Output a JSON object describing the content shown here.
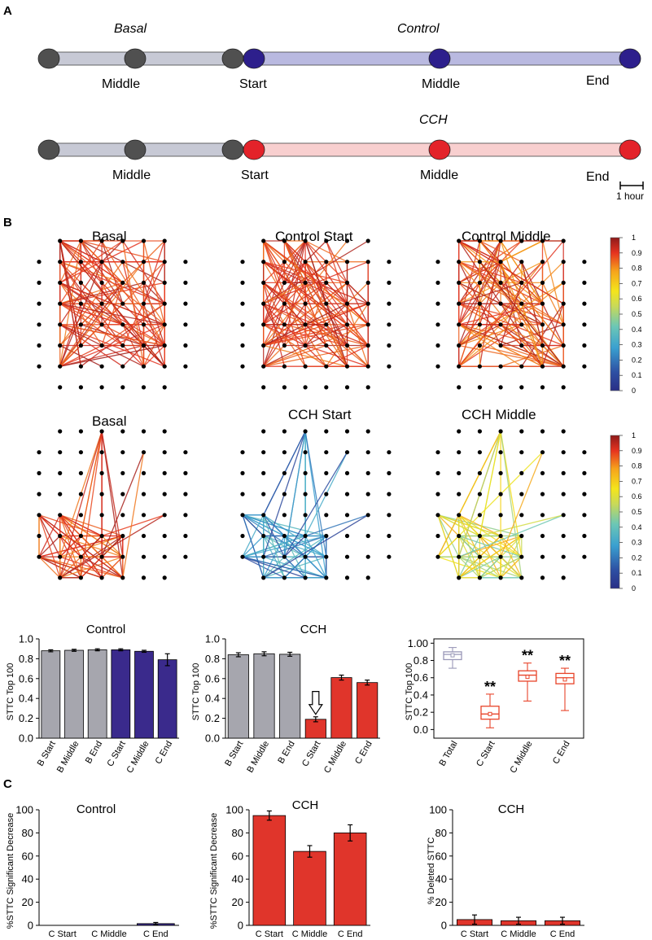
{
  "panels": {
    "a": "A",
    "b": "B",
    "c": "C"
  },
  "colors": {
    "basal_node": "#505050",
    "basal_bar": "#c7c9d5",
    "control_node": "#2d1f8c",
    "control_bar": "#b9b9e0",
    "cch_node": "#e3232a",
    "cch_bar": "#f8cfcf",
    "gray_bar": "#a6a6ae",
    "control_chart": "#3a2a8c",
    "cch_chart": "#e0352b",
    "box_basal": "#9a98b8",
    "box_cch": "#e8442a"
  },
  "timeline": {
    "scale_label": "1 hour",
    "rows": [
      {
        "cond_left": "Basal",
        "cond_right": "Control",
        "labels": [
          "Middle",
          "Start",
          "Middle",
          "End"
        ],
        "scheme": "control"
      },
      {
        "cond_left": "",
        "cond_right": "CCH",
        "labels": [
          "Middle",
          "Start",
          "Middle",
          "End"
        ],
        "scheme": "cch"
      }
    ]
  },
  "networks": {
    "row1_titles": [
      "Basal",
      "Control Start",
      "Control Middle"
    ],
    "row2_titles": [
      "Basal",
      "CCH Start",
      "CCH Middle"
    ],
    "colorbar_ticks": [
      "1",
      "0.9",
      "0.8",
      "0.7",
      "0.6",
      "0.5",
      "0.4",
      "0.3",
      "0.2",
      "0.1",
      "0"
    ]
  },
  "chart_data": [
    {
      "type": "bar",
      "title": "Control",
      "ylabel": "STTC Top 100",
      "ylim": [
        0,
        1.0
      ],
      "yticks": [
        "0.0",
        "0.2",
        "0.4",
        "0.6",
        "0.8",
        "1.0"
      ],
      "categories": [
        "B Start",
        "B Middle",
        "B End",
        "C Start",
        "C Middle",
        "C End"
      ],
      "values": [
        0.88,
        0.885,
        0.89,
        0.89,
        0.875,
        0.79
      ],
      "errors": [
        0.01,
        0.01,
        0.01,
        0.01,
        0.01,
        0.06
      ]
    },
    {
      "type": "bar",
      "title": "CCH",
      "ylabel": "STTC Top 100",
      "ylim": [
        0,
        1.0
      ],
      "yticks": [
        "0.0",
        "0.2",
        "0.4",
        "0.6",
        "0.8",
        "1.0"
      ],
      "categories": [
        "B Start",
        "B Middle",
        "B End",
        "C Start",
        "C Middle",
        "C End"
      ],
      "values": [
        0.84,
        0.85,
        0.845,
        0.19,
        0.61,
        0.56
      ],
      "errors": [
        0.02,
        0.02,
        0.02,
        0.025,
        0.025,
        0.025
      ],
      "annotation": "arrow above C Start"
    },
    {
      "type": "box",
      "title": "",
      "ylabel": "STTC Top 100",
      "ylim": [
        -0.1,
        1.05
      ],
      "yticks": [
        "0.0",
        "0.2",
        "0.4",
        "0.6",
        "0.8",
        "1.00"
      ],
      "categories": [
        "B Total",
        "C Start",
        "C Middle",
        "C End"
      ],
      "boxes": [
        {
          "min": 0.71,
          "q1": 0.81,
          "median": 0.87,
          "q3": 0.9,
          "max": 0.95,
          "mean": 0.86
        },
        {
          "min": 0.02,
          "q1": 0.12,
          "median": 0.18,
          "q3": 0.27,
          "max": 0.41,
          "mean": 0.18
        },
        {
          "min": 0.33,
          "q1": 0.56,
          "median": 0.63,
          "q3": 0.68,
          "max": 0.77,
          "mean": 0.61
        },
        {
          "min": 0.22,
          "q1": 0.53,
          "median": 0.6,
          "q3": 0.65,
          "max": 0.71,
          "mean": 0.58
        }
      ],
      "significance": [
        "",
        "**",
        "**",
        "**"
      ]
    },
    {
      "type": "bar",
      "title": "Control",
      "ylabel": "%STTC Significant Decrease",
      "ylim": [
        0,
        100
      ],
      "yticks": [
        "0",
        "20",
        "40",
        "60",
        "80",
        "100"
      ],
      "categories": [
        "C Start",
        "C Middle",
        "C End"
      ],
      "values": [
        0,
        0,
        1.5
      ],
      "errors": [
        0,
        0,
        1.0
      ]
    },
    {
      "type": "bar",
      "title": "CCH",
      "ylabel": "%STTC Significant Decrease",
      "ylim": [
        0,
        100
      ],
      "yticks": [
        "0",
        "20",
        "40",
        "60",
        "80",
        "100"
      ],
      "categories": [
        "C Start",
        "C Middle",
        "C End"
      ],
      "values": [
        95,
        64,
        80
      ],
      "errors": [
        4,
        5,
        7
      ]
    },
    {
      "type": "bar",
      "title": "CCH",
      "ylabel": "% Deleted STTC",
      "ylim": [
        0,
        100
      ],
      "yticks": [
        "0",
        "20",
        "40",
        "60",
        "80",
        "100"
      ],
      "categories": [
        "C Start",
        "C Middle",
        "C End"
      ],
      "values": [
        5,
        4,
        4
      ],
      "errors": [
        4,
        3,
        3
      ]
    }
  ]
}
